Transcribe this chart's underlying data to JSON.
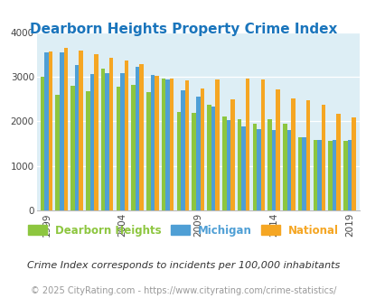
{
  "title": "Dearborn Heights Property Crime Index",
  "subtitle": "Crime Index corresponds to incidents per 100,000 inhabitants",
  "footer": "© 2025 CityRating.com - https://www.cityrating.com/crime-statistics/",
  "years": [
    1999,
    2000,
    2001,
    2002,
    2003,
    2004,
    2005,
    2006,
    2007,
    2008,
    2009,
    2010,
    2011,
    2012,
    2013,
    2014,
    2015,
    2016,
    2017,
    2018,
    2019
  ],
  "dearborn_heights": [
    3000,
    2600,
    2800,
    2680,
    3200,
    2790,
    2820,
    2660,
    2970,
    2210,
    2190,
    2370,
    2110,
    2060,
    1940,
    2060,
    1940,
    1640,
    1580,
    1570,
    1560
  ],
  "michigan": [
    3560,
    3560,
    3270,
    3060,
    3090,
    3090,
    3230,
    3050,
    2940,
    2700,
    2550,
    2340,
    2030,
    1895,
    1830,
    1800,
    1800,
    1640,
    1590,
    1590,
    1590
  ],
  "national": [
    3580,
    3660,
    3600,
    3510,
    3440,
    3380,
    3290,
    3020,
    2960,
    2920,
    2740,
    2950,
    2500,
    2960,
    2950,
    2720,
    2510,
    2470,
    2380,
    2170,
    2100
  ],
  "bar_width": 0.27,
  "colors": {
    "dearborn_heights": "#8dc63f",
    "michigan": "#4f9fd5",
    "national": "#f5a623"
  },
  "background_color": "#ddeef5",
  "ylim": [
    0,
    4000
  ],
  "yticks": [
    0,
    1000,
    2000,
    3000,
    4000
  ],
  "title_color": "#1a75bc",
  "title_fontsize": 11,
  "subtitle_color": "#333333",
  "subtitle_fontsize": 8,
  "footer_color": "#999999",
  "footer_fontsize": 7,
  "legend_labels": [
    "Dearborn Heights",
    "Michigan",
    "National"
  ],
  "legend_colors": [
    "#8dc63f",
    "#4f9fd5",
    "#f5a623"
  ],
  "tick_years": [
    1999,
    2004,
    2009,
    2014,
    2019
  ]
}
